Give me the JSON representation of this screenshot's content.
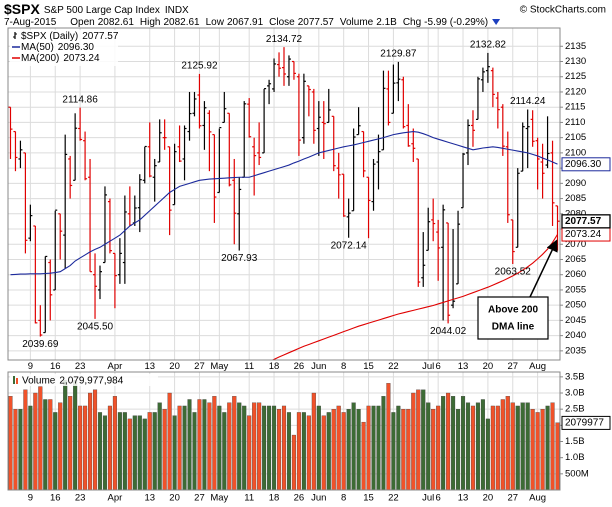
{
  "chart_data": {
    "type": "ohlc",
    "title": "$SPX",
    "subtitle": "S&P 500 Large Cap Index",
    "exchange": "INDX",
    "source": "© StockCharts.com",
    "date": "7-Aug-2015",
    "quote": [
      {
        "label": "Open",
        "value": "2082.61"
      },
      {
        "label": "High",
        "value": "2082.61"
      },
      {
        "label": "Low",
        "value": "2067.91"
      },
      {
        "label": "Close",
        "value": "2077.57"
      },
      {
        "label": "Volume",
        "value": "2.1B"
      },
      {
        "label": "Chg",
        "value": "-5.99 (-0.29%)"
      }
    ],
    "categories": [
      null,
      null,
      null,
      null,
      "9",
      null,
      null,
      null,
      null,
      "16",
      null,
      null,
      null,
      null,
      "23",
      null,
      null,
      null,
      null,
      null,
      null,
      "Apr",
      null,
      null,
      null,
      null,
      null,
      null,
      "13",
      null,
      null,
      null,
      null,
      "20",
      null,
      null,
      null,
      null,
      "27",
      null,
      null,
      null,
      "May",
      null,
      null,
      null,
      null,
      null,
      "11",
      null,
      null,
      null,
      null,
      "18",
      null,
      null,
      null,
      null,
      "26",
      null,
      null,
      null,
      "Jun",
      null,
      null,
      null,
      null,
      "8",
      null,
      null,
      null,
      null,
      "15",
      null,
      null,
      null,
      null,
      "22",
      null,
      null,
      null,
      null,
      null,
      null,
      "Jul",
      null,
      "6",
      null,
      null,
      null,
      null,
      "13",
      null,
      null,
      null,
      null,
      "20",
      null,
      null,
      null,
      null,
      "27",
      null,
      null,
      null,
      null,
      "Aug",
      null,
      null,
      null,
      null
    ],
    "ylim": [
      2032,
      2141
    ],
    "yticks": [
      2035,
      2040,
      2045,
      2050,
      2055,
      2060,
      2065,
      2070,
      2075,
      2080,
      2085,
      2090,
      2095,
      2100,
      2105,
      2110,
      2115,
      2120,
      2125,
      2130,
      2135
    ],
    "grid": true,
    "up_color": "#000000",
    "down_color": "#e00000",
    "ohlc": {
      "name": "$SPX (Daily)",
      "open": [
        2115,
        2107,
        2098,
        2100,
        2072,
        2076,
        2045,
        2041,
        2064,
        2055,
        2080,
        2073,
        2098,
        2091,
        2108,
        2104,
        2092,
        2060,
        2055,
        2064,
        2084,
        2067,
        2060,
        2064,
        2080,
        2077,
        2082,
        2091,
        2102,
        2092,
        2097,
        2105,
        2102,
        2083,
        2102,
        2098,
        2107,
        2113,
        2119,
        2109,
        2113,
        2106,
        2087,
        2110,
        2113,
        2091,
        2080,
        2092,
        2116,
        2102,
        2100,
        2100,
        2122,
        2121,
        2129,
        2128,
        2125,
        2130,
        2125,
        2105,
        2122,
        2120,
        2108,
        2110,
        2110,
        2112,
        2095,
        2093,
        2079,
        2081,
        2106,
        2107,
        2092,
        2084,
        2097,
        2101,
        2121,
        2113,
        2123,
        2124,
        2109,
        2103,
        2098,
        2059,
        2068,
        2078,
        2074,
        2069,
        2077,
        2050,
        2057,
        2082,
        2100,
        2109,
        2111,
        2124,
        2127,
        2127,
        2118,
        2115,
        2102,
        2078,
        2069,
        2094,
        2108,
        2111,
        2104,
        2097,
        2096,
        2100,
        2082.61
      ],
      "high": [
        2115,
        2107,
        2104,
        2100,
        2083,
        2076,
        2050,
        2066,
        2065,
        2081,
        2080,
        2106,
        2099,
        2113,
        2114.86,
        2107,
        2098,
        2067,
        2063,
        2089,
        2085,
        2067,
        2072,
        2086,
        2089,
        2086,
        2093,
        2102,
        2110,
        2098,
        2111,
        2111,
        2102,
        2103,
        2109,
        2109,
        2120,
        2120,
        2125.92,
        2117,
        2114,
        2106,
        2108,
        2120,
        2113,
        2098,
        2092,
        2117,
        2118,
        2105,
        2110,
        2121,
        2124,
        2131,
        2133,
        2134.72,
        2132,
        2130,
        2126,
        2126,
        2122,
        2121,
        2117,
        2117,
        2121,
        2112,
        2100,
        2093,
        2085,
        2108,
        2115,
        2107,
        2092,
        2098,
        2106,
        2127,
        2127,
        2129,
        2129.87,
        2125,
        2116,
        2108,
        2098,
        2074,
        2082,
        2085,
        2078,
        2083,
        2077,
        2075,
        2081,
        2100,
        2111,
        2114,
        2125,
        2128,
        2132.82,
        2128,
        2120,
        2116,
        2107,
        2078,
        2095,
        2110,
        2114.24,
        2114,
        2105,
        2103,
        2112,
        2104,
        2082.61
      ],
      "low": [
        2098,
        2094,
        2095,
        2067,
        2071,
        2044,
        2039.69,
        2041,
        2045,
        2055,
        2065,
        2062,
        2085,
        2091,
        2104,
        2091,
        2061,
        2045.5,
        2052,
        2064,
        2067,
        2049,
        2057,
        2057,
        2076,
        2076,
        2074,
        2090,
        2092,
        2084,
        2097,
        2101,
        2073,
        2083,
        2097,
        2091,
        2104,
        2112,
        2108,
        2101,
        2094,
        2077,
        2087,
        2110,
        2089,
        2070,
        2067.93,
        2092,
        2105,
        2086,
        2096,
        2100,
        2116,
        2120,
        2125,
        2122,
        2122,
        2124,
        2099,
        2103,
        2112,
        2103,
        2099,
        2098,
        2110,
        2094,
        2085,
        2079,
        2072.14,
        2081,
        2106,
        2092,
        2072,
        2081,
        2088,
        2101,
        2109,
        2113,
        2117,
        2108,
        2102,
        2097,
        2056,
        2056,
        2068,
        2071,
        2058,
        2045,
        2044.02,
        2049,
        2057,
        2082,
        2096,
        2102,
        2111,
        2120,
        2123,
        2115,
        2108,
        2099,
        2077,
        2063.52,
        2069,
        2094,
        2095,
        2102,
        2088,
        2085,
        2095,
        2076,
        2067.91
      ],
      "close": [
        2107.8,
        2098.5,
        2101,
        2071.3,
        2079.4,
        2044.2,
        2040.2,
        2066,
        2053.4,
        2081.2,
        2074.3,
        2099.5,
        2089.3,
        2108.1,
        2104.4,
        2091.5,
        2061,
        2056.2,
        2061,
        2086.2,
        2067.9,
        2059.7,
        2067,
        2080.6,
        2076.3,
        2081.9,
        2091.2,
        2102.1,
        2092.4,
        2095.8,
        2106.6,
        2105,
        2081.2,
        2100.4,
        2097.3,
        2108,
        2112.9,
        2117.7,
        2108.9,
        2114.8,
        2106.9,
        2085.5,
        2108.3,
        2114.5,
        2089.5,
        2080.2,
        2088,
        2116.1,
        2105.3,
        2099.1,
        2098.5,
        2121.1,
        2122.7,
        2129.2,
        2127.8,
        2125.9,
        2130.8,
        2126.1,
        2104.2,
        2123.5,
        2120.8,
        2107.4,
        2111.7,
        2109.6,
        2114.1,
        2095.8,
        2092.8,
        2079.3,
        2080.2,
        2105.2,
        2108.9,
        2094.1,
        2084.4,
        2096.3,
        2100.4,
        2121.2,
        2110,
        2122.9,
        2124.2,
        2108.6,
        2102.3,
        2101.5,
        2057.6,
        2063.1,
        2077.4,
        2076.8,
        2068.8,
        2081.3,
        2046.7,
        2051.3,
        2076.6,
        2099.6,
        2109,
        2107.4,
        2124.3,
        2126.6,
        2128.3,
        2119.2,
        2114.2,
        2102.2,
        2079.7,
        2067.6,
        2093.3,
        2108.6,
        2108.6,
        2103.8,
        2098,
        2093.3,
        2099.8,
        2083.6,
        2077.57
      ]
    },
    "series": [
      {
        "name": "MA(50)",
        "color": "#1c2a9c",
        "last_label": "2096.30",
        "values": [
          2060,
          2060.1,
          2060.2,
          2060.2,
          2060.3,
          2060.3,
          2060.3,
          2060.4,
          2060.5,
          2060.7,
          2061,
          2062,
          2063,
          2064.5,
          2065.5,
          2066.5,
          2067.5,
          2068.3,
          2069,
          2070,
          2071,
          2072,
          2073,
          2074.5,
          2076,
          2077,
          2078,
          2079.5,
          2081,
          2082.5,
          2084,
          2085.5,
          2087,
          2088,
          2089,
          2089.5,
          2090,
          2090.5,
          2091,
          2091.2,
          2091.4,
          2091.5,
          2091.6,
          2091.7,
          2091.8,
          2091.9,
          2092,
          2092,
          2092,
          2092.5,
          2093,
          2093.5,
          2094,
          2094.5,
          2095,
          2095.5,
          2096,
          2096.7,
          2097.3,
          2098,
          2098.6,
          2099.3,
          2100,
          2100.4,
          2100.8,
          2101.2,
          2101.6,
          2102,
          2102.3,
          2102.6,
          2103,
          2103.4,
          2103.8,
          2104.2,
          2104.6,
          2105,
          2105.5,
          2106,
          2106.3,
          2106.6,
          2106.8,
          2107,
          2106.8,
          2106.3,
          2105.7,
          2105,
          2104.5,
          2104,
          2103.5,
          2103,
          2102.5,
          2102,
          2101.5,
          2101,
          2101.3,
          2101.6,
          2101.8,
          2102,
          2101.8,
          2101.5,
          2101.2,
          2100.9,
          2100.6,
          2100.3,
          2100,
          2099.5,
          2099,
          2098.3,
          2097.7,
          2097,
          2096.3
        ]
      },
      {
        "name": "MA(200)",
        "color": "#e00000",
        "last_label": "2073.24",
        "values": [
          null,
          null,
          null,
          null,
          null,
          null,
          null,
          null,
          null,
          null,
          null,
          null,
          null,
          null,
          null,
          null,
          null,
          null,
          null,
          null,
          null,
          null,
          null,
          null,
          null,
          null,
          null,
          null,
          null,
          null,
          null,
          null,
          null,
          null,
          null,
          null,
          null,
          null,
          null,
          null,
          null,
          null,
          null,
          null,
          null,
          null,
          null,
          null,
          null,
          null,
          null,
          null,
          2031.5,
          2032.2,
          2033,
          2033.7,
          2034.4,
          2035.1,
          2035.8,
          2036.5,
          2037.1,
          2037.7,
          2038.3,
          2038.9,
          2039.5,
          2040.1,
          2040.7,
          2041.3,
          2041.9,
          2042.5,
          2043.1,
          2043.6,
          2044.1,
          2044.6,
          2045.1,
          2045.6,
          2046.1,
          2046.6,
          2047.1,
          2047.5,
          2047.9,
          2048.3,
          2048.7,
          2049.1,
          2049.5,
          2049.9,
          2050.4,
          2050.9,
          2051.4,
          2051.9,
          2052.4,
          2052.9,
          2053.5,
          2054.1,
          2054.7,
          2055.3,
          2055.9,
          2056.6,
          2057.3,
          2058,
          2058.8,
          2059.6,
          2060.5,
          2061.5,
          2062.6,
          2063.8,
          2065.2,
          2066.7,
          2068.4,
          2070.6,
          2073.24
        ]
      }
    ],
    "annotations": [
      {
        "value": 2114.86,
        "label": "2114.86"
      },
      {
        "value": 2125.92,
        "label": "2125.92"
      },
      {
        "value": 2134.72,
        "label": "2134.72"
      },
      {
        "value": 2129.87,
        "label": "2129.87"
      },
      {
        "value": 2132.82,
        "label": "2132.82"
      },
      {
        "value": 2114.24,
        "label": "2114.24"
      },
      {
        "value": 2039.69,
        "label": "2039.69"
      },
      {
        "value": 2045.5,
        "label": "2045.50"
      },
      {
        "value": 2067.93,
        "label": "2067.93"
      },
      {
        "value": 2072.14,
        "label": "2072.14"
      },
      {
        "value": 2044.02,
        "label": "2044.02"
      },
      {
        "value": 2063.52,
        "label": "2063.52"
      }
    ],
    "callout": [
      "Above 200",
      "DMA line"
    ],
    "volume": {
      "name": "Volume",
      "last_label": "2,079,977,984",
      "axis_label": "2079977",
      "up_color": "#3d6b35",
      "down_color": "#f0522a",
      "ylim": [
        0,
        3.65
      ],
      "yticks": [
        {
          "value": 0.5,
          "label": "500M"
        },
        {
          "value": 1,
          "label": "1.0B"
        },
        {
          "value": 1.5,
          "label": "1.5B"
        },
        {
          "value": 2,
          "label": "2.0B"
        },
        {
          "value": 2.5,
          "label": "2.5B"
        },
        {
          "value": 3,
          "label": "3.0B"
        },
        {
          "value": 3.5,
          "label": "3.5B"
        }
      ],
      "values": [
        2.9,
        2.5,
        2.5,
        3.1,
        2.6,
        3.0,
        3.2,
        2.8,
        2.8,
        2.4,
        2.7,
        3.4,
        2.9,
        3.4,
        2.6,
        2.6,
        3.0,
        3.1,
        2.4,
        2.3,
        2.6,
        2.9,
        2.4,
        2.4,
        2.2,
        2.3,
        2.3,
        2.2,
        2.4,
        2.4,
        2.7,
        2.5,
        3.0,
        2.3,
        2.6,
        2.6,
        2.8,
        2.4,
        2.8,
        2.8,
        2.7,
        2.9,
        2.6,
        2.4,
        2.7,
        2.9,
        2.7,
        2.6,
        2.3,
        2.7,
        2.7,
        2.6,
        2.6,
        2.6,
        2.5,
        2.6,
        2.4,
        1.7,
        2.4,
        2.4,
        2.3,
        3.0,
        2.6,
        2.3,
        2.4,
        2.5,
        2.6,
        2.4,
        2.5,
        2.7,
        2.5,
        2.1,
        2.6,
        2.6,
        2.6,
        2.9,
        3.3,
        2.4,
        2.6,
        2.5,
        2.5,
        3.0,
        3.1,
        3.1,
        2.7,
        2.5,
        2.6,
        2.9,
        3.0,
        2.9,
        2.5,
        2.9,
        2.7,
        2.6,
        2.7,
        2.8,
        2.2,
        2.6,
        2.6,
        2.8,
        2.9,
        2.7,
        2.6,
        2.7,
        2.7,
        2.5,
        2.4,
        2.5,
        2.6,
        2.7,
        2.08
      ]
    }
  }
}
